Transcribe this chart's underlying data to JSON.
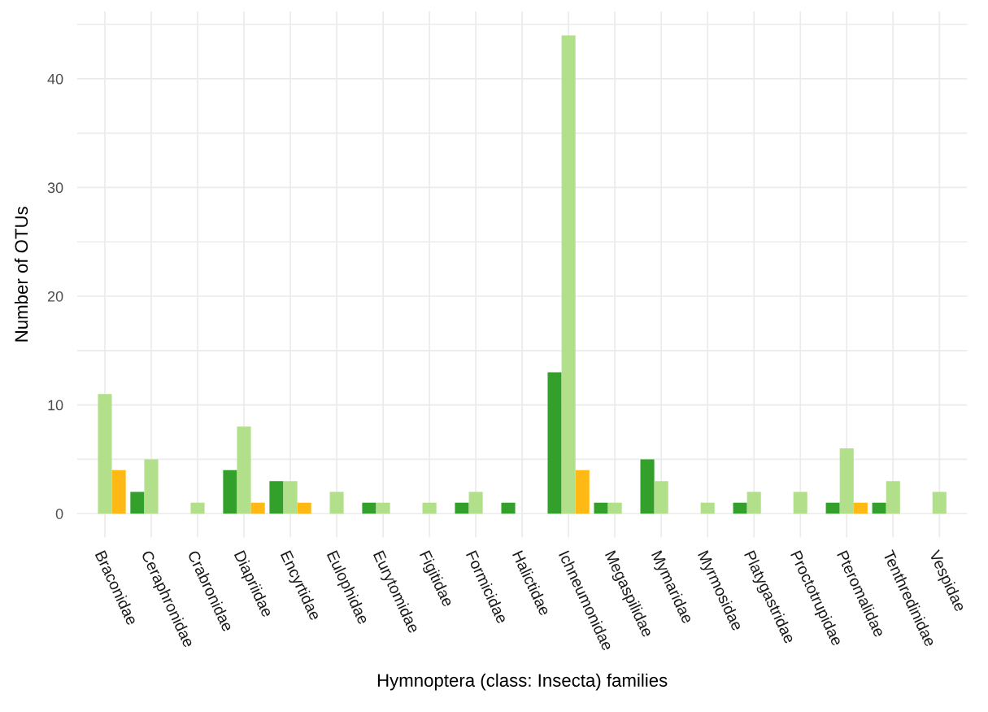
{
  "chart_data": {
    "type": "bar",
    "xlabel": "Hymnoptera (class: Insecta) families",
    "ylabel": "Number of OTUs",
    "categories": [
      "Braconidae",
      "Ceraphronidae",
      "Crabronidae",
      "Diapriidae",
      "Encyrtidae",
      "Eulophidae",
      "Eurytomidae",
      "Figitidae",
      "Formicidae",
      "Halictidae",
      "Ichneumonidae",
      "Megaspilidae",
      "Mymaridae",
      "Myrmosidae",
      "Platygastridae",
      "Proctotrupidae",
      "Pteromalidae",
      "Tenthredinidae",
      "Vespidae"
    ],
    "series": [
      {
        "color": "#33a02c",
        "values": [
          null,
          2,
          null,
          4,
          3,
          null,
          1,
          null,
          1,
          1,
          13,
          1,
          5,
          null,
          1,
          null,
          1,
          1,
          null
        ]
      },
      {
        "color": "#b2df8a",
        "values": [
          11,
          5,
          1,
          8,
          3,
          2,
          1,
          1,
          2,
          null,
          44,
          1,
          3,
          1,
          2,
          2,
          6,
          3,
          2
        ]
      },
      {
        "color": "#ffb914",
        "values": [
          4,
          null,
          null,
          1,
          1,
          null,
          null,
          null,
          null,
          null,
          4,
          null,
          null,
          null,
          null,
          null,
          1,
          null,
          null
        ]
      }
    ],
    "ylim": [
      -2.2,
      46.2
    ],
    "yticks": [
      0,
      {
        "value": 5,
        "label": null
      },
      10,
      {
        "value": 15,
        "label": null
      },
      20,
      {
        "value": 25,
        "label": null
      },
      30,
      {
        "value": 35,
        "label": null
      },
      40,
      {
        "value": 45,
        "label": null
      }
    ],
    "grid": true
  }
}
